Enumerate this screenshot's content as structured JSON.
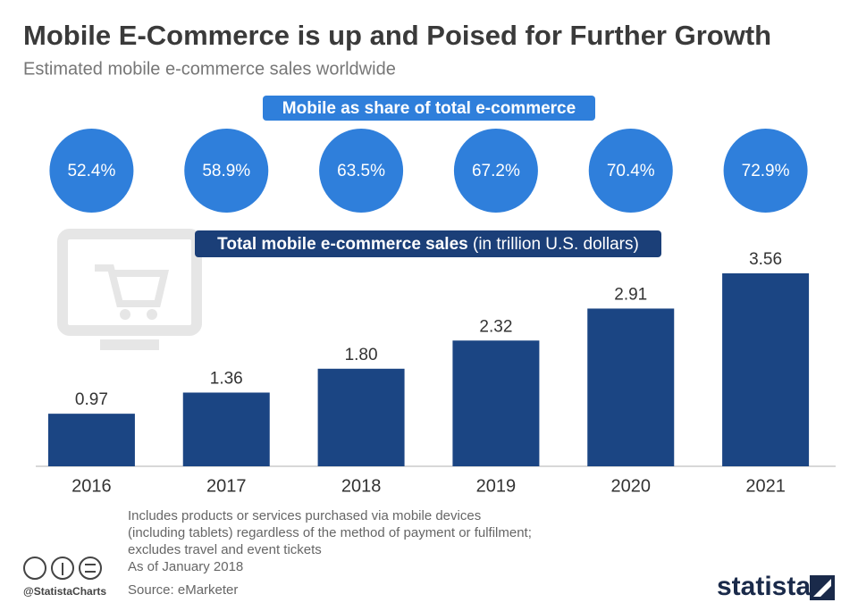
{
  "chart_data": {
    "type": "bar",
    "title": "Mobile E-Commerce is up and Poised for Further Growth",
    "subtitle": "Estimated mobile e-commerce sales worldwide",
    "share_title": "Mobile as share of total e-commerce",
    "share_values": [
      52.4,
      58.9,
      63.5,
      67.2,
      70.4,
      72.9
    ],
    "share_labels": [
      "52.4%",
      "58.9%",
      "63.5%",
      "67.2%",
      "70.4%",
      "72.9%"
    ],
    "share_color": "#2f7fdb",
    "axis_label": "Total mobile e-commerce sales",
    "unit": "(in trillion U.S. dollars)",
    "categories": [
      "2016",
      "2017",
      "2018",
      "2019",
      "2020",
      "2021"
    ],
    "values": [
      0.97,
      1.36,
      1.8,
      2.32,
      2.91,
      3.56
    ],
    "value_labels": [
      "0.97",
      "1.36",
      "1.80",
      "2.32",
      "2.91",
      "3.56"
    ],
    "color": "#1b4583"
  },
  "footer": {
    "notes": [
      "Includes products or services purchased via mobile devices",
      "(including tablets) regardless of the method of payment or fulfilment;",
      "excludes travel and event tickets",
      "As of January 2018"
    ],
    "source": "Source: eMarketer",
    "handle": "@StatistaCharts",
    "brand": "statista"
  }
}
